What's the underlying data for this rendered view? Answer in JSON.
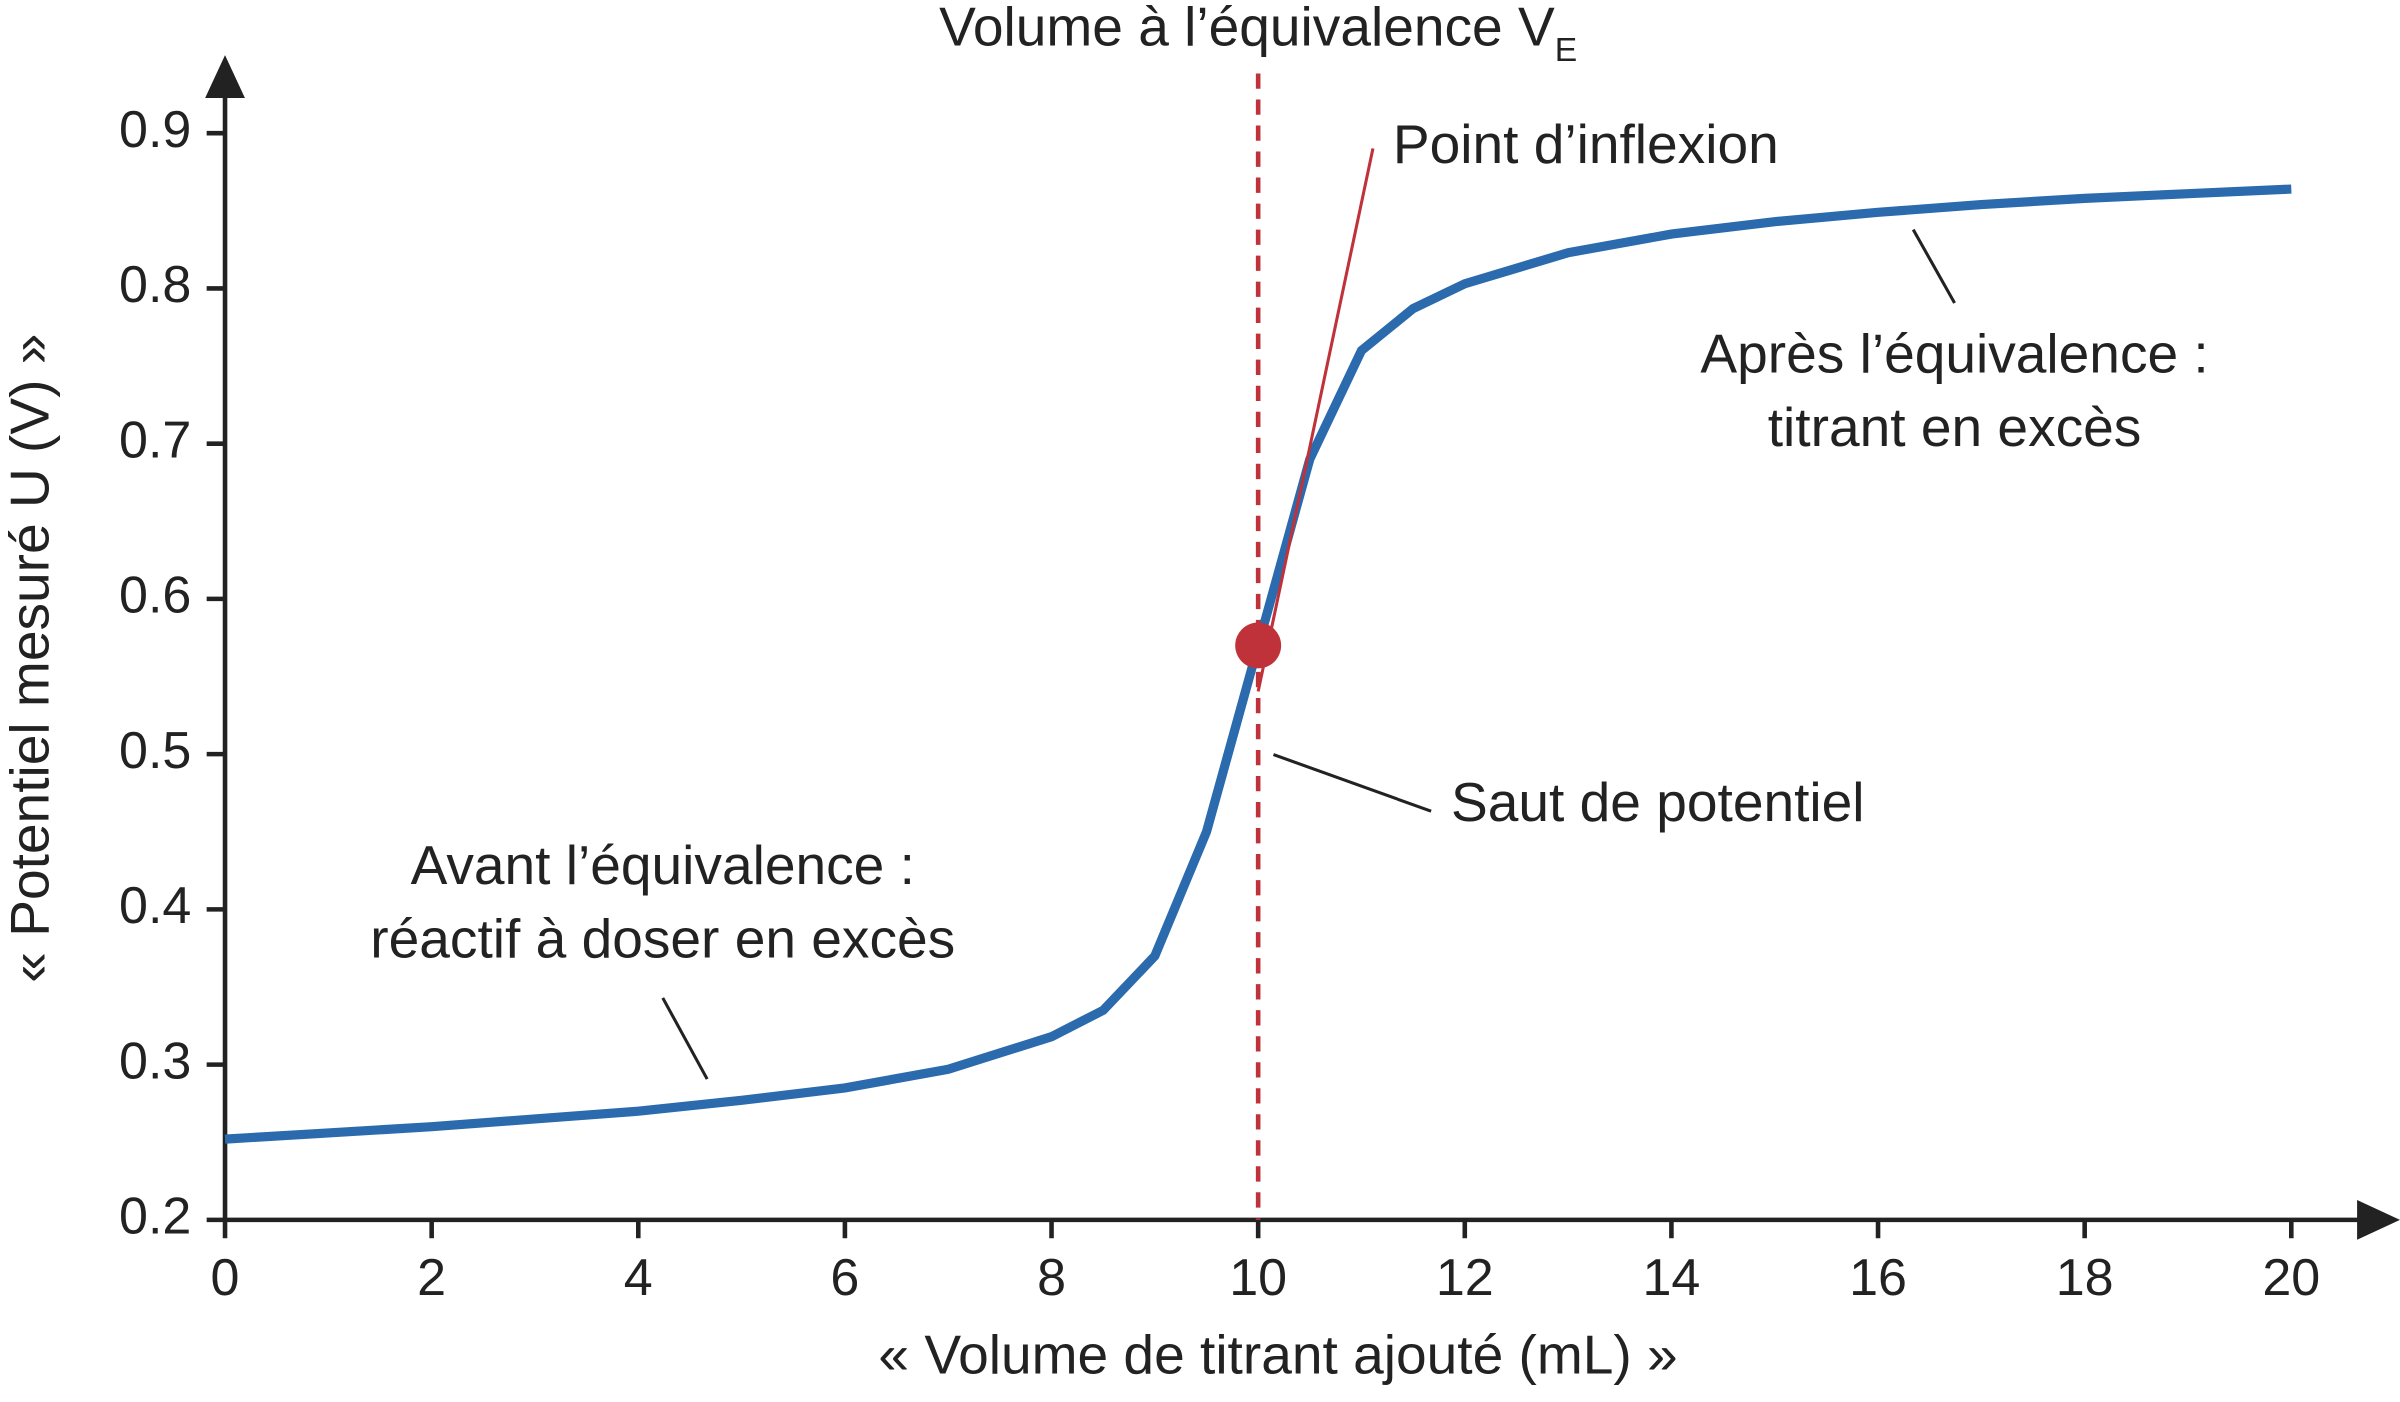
{
  "chart_data": {
    "type": "line",
    "title": "Volume à l’équivalence V",
    "title_subscript": "E",
    "x_label": "« Volume de titrant ajouté (mL) »",
    "y_label": "« Potentiel mesuré U (V) »",
    "x": [
      0,
      1,
      2,
      3,
      4,
      5,
      6,
      7,
      8,
      8.5,
      9,
      9.5,
      10,
      10.5,
      11,
      11.5,
      12,
      13,
      14,
      15,
      16,
      17,
      18,
      19,
      20
    ],
    "series": [
      {
        "name": "U",
        "color": "#2a6aad",
        "values": [
          0.252,
          0.256,
          0.26,
          0.265,
          0.27,
          0.277,
          0.285,
          0.297,
          0.318,
          0.335,
          0.37,
          0.45,
          0.57,
          0.69,
          0.76,
          0.787,
          0.803,
          0.823,
          0.835,
          0.843,
          0.849,
          0.854,
          0.858,
          0.861,
          0.864
        ]
      }
    ],
    "xlim": [
      0,
      20
    ],
    "xticks": [
      0,
      2,
      4,
      6,
      8,
      10,
      12,
      14,
      16,
      18,
      20
    ],
    "ylim": [
      0.2,
      0.9
    ],
    "yticks": [
      0.2,
      0.3,
      0.4,
      0.5,
      0.6,
      0.7,
      0.8,
      0.9
    ],
    "inflection": {
      "label": "Point d’inflexion",
      "x": 10,
      "y": 0.57,
      "color": "#c0323a"
    },
    "annotations": [
      {
        "lines": [
          "Avant l’équivalence :",
          "réactif à doser en excès"
        ]
      },
      {
        "lines": [
          "Après l’équivalence :",
          "titrant en excès"
        ]
      },
      {
        "lines": [
          "Saut de potentiel"
        ]
      }
    ]
  }
}
